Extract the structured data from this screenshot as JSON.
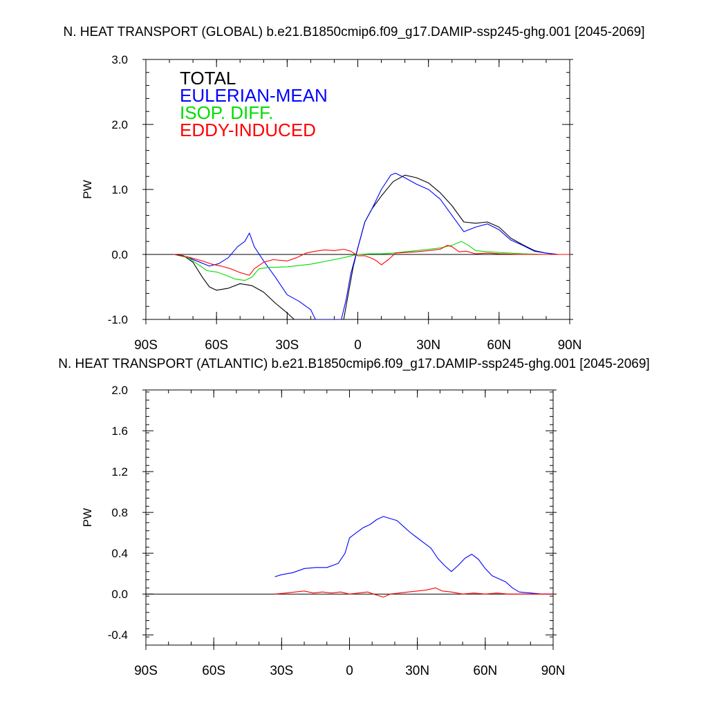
{
  "charts": [
    {
      "title": "N. HEAT TRANSPORT (GLOBAL) b.e21.B1850cmip6.f09_g17.DAMIP-ssp245-ghg.001 [2045-2069]",
      "ylabel": "PW",
      "ytick_labels": [
        "-1.0",
        "0.0",
        "1.0",
        "2.0",
        "3.0"
      ],
      "xtick_labels": [
        "90S",
        "60S",
        "30S",
        "0",
        "30N",
        "60N",
        "90N"
      ],
      "legend": [
        {
          "label": "TOTAL",
          "color": "#000000"
        },
        {
          "label": "EULERIAN-MEAN",
          "color": "#0000ff"
        },
        {
          "label": "ISOP. DIFF.",
          "color": "#00dd00"
        },
        {
          "label": "EDDY-INDUCED",
          "color": "#ff0000"
        }
      ]
    },
    {
      "title": "N. HEAT TRANSPORT (ATLANTIC) b.e21.B1850cmip6.f09_g17.DAMIP-ssp245-ghg.001 [2045-2069]",
      "ylabel": "PW",
      "ytick_labels": [
        "-0.4",
        "0.0",
        "0.4",
        "0.8",
        "1.2",
        "1.6",
        "2.0"
      ],
      "xtick_labels": [
        "90S",
        "60S",
        "30S",
        "0",
        "30N",
        "60N",
        "90N"
      ]
    }
  ],
  "chart_data": [
    {
      "type": "line",
      "title": "N. HEAT TRANSPORT (GLOBAL) b.e21.B1850cmip6.f09_g17.DAMIP-ssp245-ghg.001 [2045-2069]",
      "xlabel": "",
      "ylabel": "PW",
      "xlim": [
        -90,
        90
      ],
      "ylim": [
        -1.0,
        3.0
      ],
      "grid": false,
      "legend_position": "top-left",
      "zero_line": true,
      "series": [
        {
          "name": "TOTAL",
          "color": "#000000",
          "points": [
            [
              -78,
              0.0
            ],
            [
              -74,
              -0.02
            ],
            [
              -70,
              -0.12
            ],
            [
              -66,
              -0.35
            ],
            [
              -63,
              -0.5
            ],
            [
              -60,
              -0.55
            ],
            [
              -55,
              -0.52
            ],
            [
              -50,
              -0.45
            ],
            [
              -45,
              -0.48
            ],
            [
              -40,
              -0.58
            ],
            [
              -35,
              -0.75
            ],
            [
              -30,
              -0.9
            ],
            [
              -27,
              -1.0
            ],
            [
              -6,
              -1.0
            ],
            [
              -4,
              -0.6
            ],
            [
              -2,
              -0.2
            ],
            [
              0,
              0.1
            ],
            [
              3,
              0.5
            ],
            [
              6,
              0.7
            ],
            [
              10,
              0.9
            ],
            [
              15,
              1.12
            ],
            [
              20,
              1.22
            ],
            [
              25,
              1.18
            ],
            [
              30,
              1.1
            ],
            [
              35,
              0.95
            ],
            [
              40,
              0.75
            ],
            [
              45,
              0.5
            ],
            [
              50,
              0.48
            ],
            [
              55,
              0.5
            ],
            [
              60,
              0.42
            ],
            [
              65,
              0.25
            ],
            [
              70,
              0.15
            ],
            [
              75,
              0.06
            ],
            [
              80,
              0.02
            ],
            [
              85,
              0.0
            ],
            [
              90,
              0.0
            ]
          ]
        },
        {
          "name": "EULERIAN-MEAN",
          "color": "#0000ff",
          "points": [
            [
              -78,
              0.0
            ],
            [
              -72,
              -0.05
            ],
            [
              -67,
              -0.12
            ],
            [
              -63,
              -0.18
            ],
            [
              -59,
              -0.14
            ],
            [
              -55,
              -0.05
            ],
            [
              -51,
              0.12
            ],
            [
              -48,
              0.2
            ],
            [
              -46,
              0.33
            ],
            [
              -44,
              0.12
            ],
            [
              -40,
              -0.1
            ],
            [
              -35,
              -0.35
            ],
            [
              -30,
              -0.62
            ],
            [
              -25,
              -0.72
            ],
            [
              -20,
              -0.85
            ],
            [
              -18,
              -1.0
            ],
            [
              -7,
              -1.0
            ],
            [
              -5,
              -0.7
            ],
            [
              -3,
              -0.3
            ],
            [
              0,
              0.1
            ],
            [
              3,
              0.5
            ],
            [
              6,
              0.7
            ],
            [
              10,
              1.0
            ],
            [
              14,
              1.22
            ],
            [
              16,
              1.25
            ],
            [
              20,
              1.18
            ],
            [
              25,
              1.08
            ],
            [
              30,
              1.0
            ],
            [
              35,
              0.85
            ],
            [
              40,
              0.6
            ],
            [
              45,
              0.35
            ],
            [
              50,
              0.42
            ],
            [
              55,
              0.47
            ],
            [
              60,
              0.38
            ],
            [
              65,
              0.22
            ],
            [
              70,
              0.14
            ],
            [
              75,
              0.05
            ],
            [
              80,
              0.02
            ],
            [
              85,
              0.0
            ],
            [
              90,
              0.0
            ]
          ]
        },
        {
          "name": "ISOP. DIFF.",
          "color": "#00dd00",
          "points": [
            [
              -78,
              0.0
            ],
            [
              -72,
              -0.05
            ],
            [
              -68,
              -0.15
            ],
            [
              -64,
              -0.25
            ],
            [
              -60,
              -0.27
            ],
            [
              -56,
              -0.32
            ],
            [
              -52,
              -0.38
            ],
            [
              -48,
              -0.4
            ],
            [
              -45,
              -0.35
            ],
            [
              -42,
              -0.22
            ],
            [
              -38,
              -0.2
            ],
            [
              -30,
              -0.19
            ],
            [
              -20,
              -0.15
            ],
            [
              -10,
              -0.08
            ],
            [
              -5,
              -0.04
            ],
            [
              0,
              0.0
            ],
            [
              5,
              0.01
            ],
            [
              10,
              0.01
            ],
            [
              15,
              0.02
            ],
            [
              20,
              0.04
            ],
            [
              25,
              0.06
            ],
            [
              30,
              0.08
            ],
            [
              35,
              0.1
            ],
            [
              40,
              0.14
            ],
            [
              44,
              0.2
            ],
            [
              47,
              0.14
            ],
            [
              50,
              0.06
            ],
            [
              55,
              0.04
            ],
            [
              60,
              0.03
            ],
            [
              65,
              0.02
            ],
            [
              70,
              0.01
            ],
            [
              80,
              0.0
            ],
            [
              90,
              0.0
            ]
          ]
        },
        {
          "name": "EDDY-INDUCED",
          "color": "#ff0000",
          "points": [
            [
              -78,
              0.0
            ],
            [
              -72,
              -0.04
            ],
            [
              -66,
              -0.1
            ],
            [
              -62,
              -0.15
            ],
            [
              -58,
              -0.18
            ],
            [
              -54,
              -0.22
            ],
            [
              -50,
              -0.28
            ],
            [
              -46,
              -0.32
            ],
            [
              -44,
              -0.22
            ],
            [
              -40,
              -0.12
            ],
            [
              -36,
              -0.08
            ],
            [
              -30,
              -0.1
            ],
            [
              -26,
              -0.05
            ],
            [
              -22,
              0.02
            ],
            [
              -18,
              0.05
            ],
            [
              -14,
              0.07
            ],
            [
              -10,
              0.06
            ],
            [
              -6,
              0.08
            ],
            [
              -3,
              0.05
            ],
            [
              0,
              -0.02
            ],
            [
              3,
              -0.02
            ],
            [
              6,
              -0.06
            ],
            [
              8,
              -0.1
            ],
            [
              10,
              -0.16
            ],
            [
              13,
              -0.08
            ],
            [
              16,
              0.02
            ],
            [
              20,
              0.03
            ],
            [
              25,
              0.04
            ],
            [
              30,
              0.06
            ],
            [
              35,
              0.08
            ],
            [
              38,
              0.14
            ],
            [
              40,
              0.12
            ],
            [
              43,
              0.04
            ],
            [
              46,
              0.05
            ],
            [
              50,
              0.01
            ],
            [
              55,
              0.02
            ],
            [
              60,
              0.01
            ],
            [
              70,
              0.0
            ],
            [
              90,
              0.0
            ]
          ]
        }
      ]
    },
    {
      "type": "line",
      "title": "N. HEAT TRANSPORT (ATLANTIC) b.e21.B1850cmip6.f09_g17.DAMIP-ssp245-ghg.001 [2045-2069]",
      "xlabel": "",
      "ylabel": "PW",
      "xlim": [
        -90,
        90
      ],
      "ylim": [
        -0.5,
        2.0
      ],
      "grid": false,
      "zero_line": true,
      "series": [
        {
          "name": "EULERIAN-MEAN",
          "color": "#0000ff",
          "points": [
            [
              -33,
              0.17
            ],
            [
              -30,
              0.19
            ],
            [
              -25,
              0.21
            ],
            [
              -20,
              0.25
            ],
            [
              -15,
              0.26
            ],
            [
              -10,
              0.26
            ],
            [
              -5,
              0.3
            ],
            [
              -2,
              0.4
            ],
            [
              0,
              0.55
            ],
            [
              3,
              0.6
            ],
            [
              6,
              0.65
            ],
            [
              9,
              0.68
            ],
            [
              12,
              0.73
            ],
            [
              15,
              0.76
            ],
            [
              18,
              0.74
            ],
            [
              21,
              0.72
            ],
            [
              24,
              0.66
            ],
            [
              27,
              0.6
            ],
            [
              30,
              0.55
            ],
            [
              33,
              0.5
            ],
            [
              36,
              0.45
            ],
            [
              39,
              0.35
            ],
            [
              42,
              0.28
            ],
            [
              45,
              0.22
            ],
            [
              48,
              0.28
            ],
            [
              51,
              0.35
            ],
            [
              54,
              0.39
            ],
            [
              57,
              0.34
            ],
            [
              60,
              0.25
            ],
            [
              63,
              0.18
            ],
            [
              66,
              0.15
            ],
            [
              69,
              0.12
            ],
            [
              72,
              0.06
            ],
            [
              75,
              0.02
            ],
            [
              80,
              0.01
            ],
            [
              85,
              0.0
            ],
            [
              90,
              0.0
            ]
          ]
        },
        {
          "name": "EDDY-INDUCED",
          "color": "#ff0000",
          "points": [
            [
              -33,
              0.0
            ],
            [
              -28,
              0.01
            ],
            [
              -24,
              0.02
            ],
            [
              -20,
              0.03
            ],
            [
              -16,
              0.01
            ],
            [
              -12,
              0.02
            ],
            [
              -8,
              0.01
            ],
            [
              -4,
              0.02
            ],
            [
              0,
              0.0
            ],
            [
              4,
              0.01
            ],
            [
              8,
              0.02
            ],
            [
              12,
              -0.01
            ],
            [
              15,
              -0.03
            ],
            [
              18,
              0.0
            ],
            [
              22,
              0.01
            ],
            [
              26,
              0.02
            ],
            [
              30,
              0.03
            ],
            [
              34,
              0.04
            ],
            [
              38,
              0.06
            ],
            [
              41,
              0.03
            ],
            [
              45,
              0.02
            ],
            [
              50,
              0.0
            ],
            [
              55,
              0.01
            ],
            [
              60,
              0.0
            ],
            [
              65,
              0.01
            ],
            [
              70,
              0.0
            ],
            [
              90,
              0.0
            ]
          ]
        }
      ]
    }
  ]
}
